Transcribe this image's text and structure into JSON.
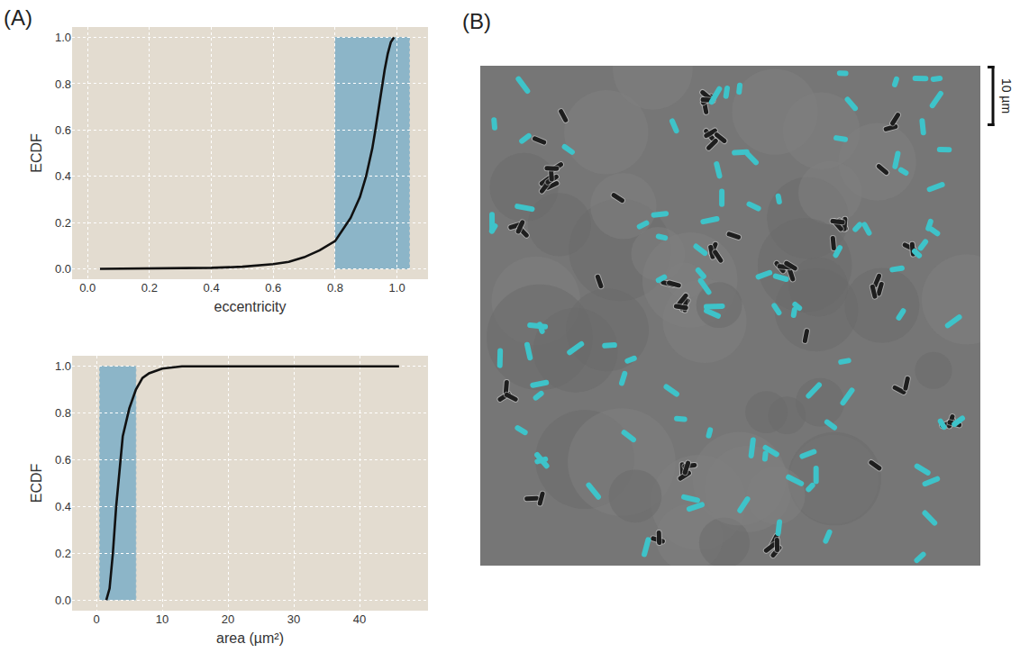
{
  "figure": {
    "panel_labels": [
      "(A)",
      "(B)"
    ]
  },
  "chart_data": [
    {
      "type": "line",
      "xlabel": "eccentricity",
      "ylabel": "ECDF",
      "x": [
        0.04,
        0.2,
        0.4,
        0.5,
        0.6,
        0.65,
        0.7,
        0.75,
        0.8,
        0.85,
        0.88,
        0.9,
        0.92,
        0.93,
        0.95,
        0.96,
        0.97,
        0.98,
        0.99
      ],
      "values": [
        0.0,
        0.001,
        0.004,
        0.009,
        0.02,
        0.03,
        0.05,
        0.08,
        0.12,
        0.22,
        0.31,
        0.4,
        0.52,
        0.6,
        0.78,
        0.86,
        0.93,
        0.98,
        1.0
      ],
      "color": "#111111",
      "xlim": [
        -0.05,
        1.1
      ],
      "ylim": [
        -0.045,
        1.045
      ],
      "xticks": [
        {
          "value": 0,
          "label": "0.0"
        },
        0.2,
        0.4,
        0.6,
        0.8,
        {
          "value": 1,
          "label": "1.0"
        }
      ],
      "yticks": [
        {
          "value": 0,
          "label": "0.0"
        },
        0.2,
        0.4,
        0.6,
        0.8,
        {
          "value": 1,
          "label": "1.0"
        }
      ],
      "grid": true,
      "highlight": {
        "x": [
          0.8,
          1.04
        ],
        "y": [
          0,
          1
        ],
        "color": "#88b3c8"
      }
    },
    {
      "type": "line",
      "xlabel": "area (µm²)",
      "ylabel": "ECDF",
      "x": [
        1.5,
        2.0,
        2.5,
        3.0,
        3.5,
        4.0,
        5.0,
        6.0,
        7.0,
        8.0,
        10.0,
        13.0,
        20.0,
        30.0,
        46.0
      ],
      "values": [
        0.0,
        0.05,
        0.2,
        0.4,
        0.55,
        0.7,
        0.82,
        0.9,
        0.95,
        0.97,
        0.99,
        1.0,
        1.0,
        1.0,
        1.0
      ],
      "color": "#111111",
      "xlim": [
        -3.7,
        50.4
      ],
      "ylim": [
        -0.045,
        1.045
      ],
      "xticks": [
        0,
        10,
        20,
        30,
        40
      ],
      "yticks": [
        {
          "value": 0,
          "label": "0.0"
        },
        0.2,
        0.4,
        0.6,
        0.8,
        {
          "value": 1,
          "label": "1.0"
        }
      ],
      "grid": true,
      "highlight": {
        "x": [
          0.5,
          6.0
        ],
        "y": [
          0,
          1
        ],
        "color": "#88b3c8"
      }
    }
  ],
  "image": {
    "scale_bar_label": "10 µm"
  }
}
